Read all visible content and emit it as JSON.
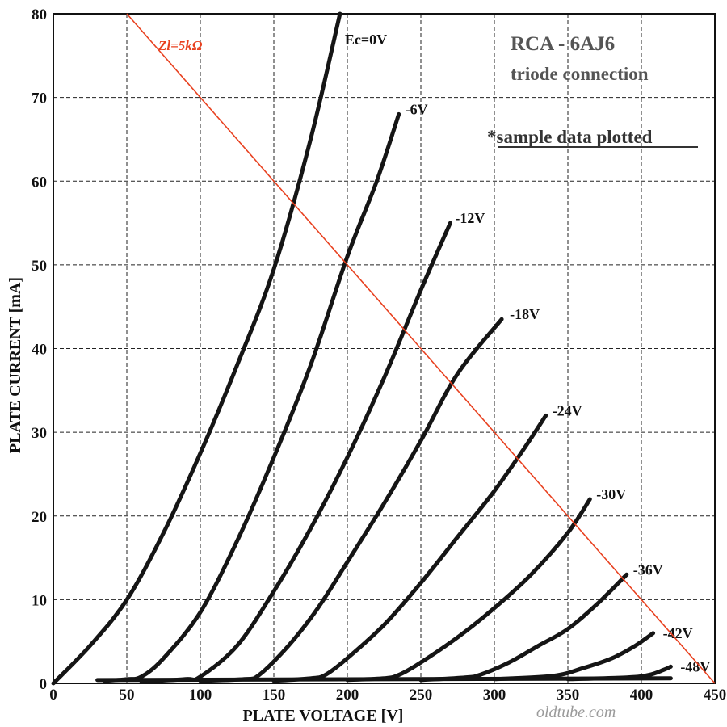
{
  "chart_data": {
    "type": "line",
    "title": "RCA - 6AJ6",
    "subtitle": "triode connection",
    "note": "*sample data plotted",
    "xlabel": "PLATE VOLTAGE  [V]",
    "ylabel": "PLATE CURRENT  [mA]",
    "xlim": [
      0,
      450
    ],
    "ylim": [
      0,
      80
    ],
    "xticks": [
      "0",
      "50",
      "100",
      "150",
      "200",
      "250",
      "300",
      "350",
      "400",
      "450"
    ],
    "yticks": [
      "0",
      "10",
      "20",
      "30",
      "40",
      "50",
      "60",
      "70",
      "80"
    ],
    "grid": true,
    "series": [
      {
        "name": "Ec=0V",
        "color": "#151515",
        "x": [
          0,
          25,
          50,
          75,
          100,
          125,
          150,
          175,
          195
        ],
        "y": [
          0,
          4.5,
          10,
          18,
          27.5,
          38,
          49.5,
          65,
          80
        ]
      },
      {
        "name": "-6V",
        "color": "#151515",
        "x": [
          35,
          50,
          60,
          75,
          100,
          125,
          150,
          175,
          200,
          220,
          235
        ],
        "y": [
          0.3,
          0.5,
          0.8,
          3,
          8.5,
          17,
          27,
          38,
          51,
          60,
          68
        ]
      },
      {
        "name": "-12V",
        "color": "#151515",
        "x": [
          60,
          90,
          100,
          125,
          150,
          175,
          200,
          225,
          250,
          270
        ],
        "y": [
          0.2,
          0.5,
          0.8,
          4.5,
          11,
          18.5,
          27,
          36.5,
          47,
          55
        ]
      },
      {
        "name": "-18V",
        "color": "#151515",
        "x": [
          100,
          130,
          140,
          160,
          180,
          200,
          225,
          250,
          275,
          305
        ],
        "y": [
          0.3,
          0.5,
          1,
          4.5,
          9,
          14.5,
          21.5,
          29,
          37,
          43.5
        ]
      },
      {
        "name": "-24V",
        "color": "#151515",
        "x": [
          150,
          175,
          185,
          200,
          225,
          250,
          275,
          300,
          320,
          335
        ],
        "y": [
          0.3,
          0.6,
          1,
          3,
          7,
          12,
          17.5,
          23,
          28,
          32
        ]
      },
      {
        "name": "-30V",
        "color": "#151515",
        "x": [
          200,
          225,
          235,
          250,
          275,
          300,
          325,
          350,
          365
        ],
        "y": [
          0.4,
          0.6,
          1,
          2.5,
          5.5,
          9,
          13,
          18,
          22
        ]
      },
      {
        "name": "-36V",
        "color": "#151515",
        "x": [
          250,
          280,
          290,
          310,
          330,
          350,
          370,
          390
        ],
        "y": [
          0.4,
          0.7,
          1,
          2.5,
          4.5,
          6.5,
          9.5,
          13
        ]
      },
      {
        "name": "-42V",
        "color": "#151515",
        "x": [
          300,
          340,
          360,
          380,
          395,
          408
        ],
        "y": [
          0.5,
          0.9,
          1.8,
          3,
          4.4,
          6
        ]
      },
      {
        "name": "-48V",
        "color": "#151515",
        "x": [
          350,
          390,
          405,
          415,
          420
        ],
        "y": [
          0.5,
          0.7,
          1,
          1.6,
          2
        ]
      }
    ],
    "load_line": {
      "label": "Zl=5kΩ",
      "color": "#e8401f",
      "x": [
        50,
        450
      ],
      "y": [
        80,
        0
      ]
    },
    "watermark": "oldtube.com"
  }
}
